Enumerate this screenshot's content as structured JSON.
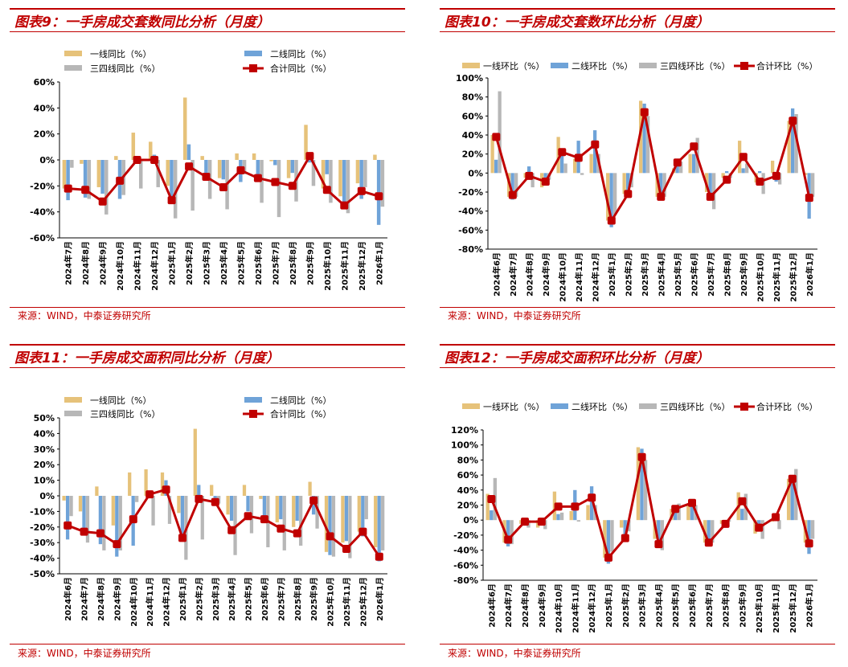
{
  "panels": [
    {
      "id": "p9",
      "title": "图表9：一手房成交套数同比分析（月度）",
      "source": "来源：WIND，中泰证券研究所"
    },
    {
      "id": "p10",
      "title": "图表10：一手房成交套数环比分析（月度）",
      "source": "来源：WIND，中泰证券研究所"
    },
    {
      "id": "p11",
      "title": "图表11：一手房成交面积同比分析（月度）",
      "source": "来源：WIND，中泰证券研究所"
    },
    {
      "id": "p12",
      "title": "图表12：一手房成交面积环比分析（月度）",
      "source": "来源：WIND，中泰证券研究所"
    }
  ],
  "colors": {
    "tier1": "#e6c27a",
    "tier2": "#6fa3d8",
    "tier34": "#b7b7b7",
    "total": "#c00000"
  },
  "chart_data": [
    {
      "id": "p9",
      "type": "bar+line",
      "title": "一手房成交套数同比分析（月度）",
      "categories": [
        "2024年7月",
        "2024年8月",
        "2024年9月",
        "2024年10月",
        "2024年11月",
        "2024年12月",
        "2025年1月",
        "2025年2月",
        "2025年3月",
        "2025年4月",
        "2025年5月",
        "2025年6月",
        "2025年7月",
        "2025年8月",
        "2025年9月",
        "2025年10月",
        "2025年11月",
        "2025年12月",
        "2026年1月"
      ],
      "yticks": [
        "60%",
        "40%",
        "20%",
        "0%",
        "-20%",
        "-40%",
        "-60%"
      ],
      "ylim": [
        -60,
        60
      ],
      "legend": [
        "一线同比（%）",
        "二线同比（%）",
        "三四线同比（%）",
        "合计同比（%）"
      ],
      "series": [
        {
          "name": "一线同比（%）",
          "values": [
            -22,
            -3,
            -21,
            3,
            21,
            14,
            -20,
            48,
            3,
            -14,
            5,
            5,
            -1,
            -14,
            27,
            -22,
            -28,
            -18,
            4
          ]
        },
        {
          "name": "二线同比（%）",
          "values": [
            -31,
            -29,
            -26,
            -30,
            0,
            4,
            -31,
            12,
            -12,
            -15,
            -17,
            -16,
            -4,
            -10,
            -2,
            -11,
            -34,
            -30,
            -50
          ]
        },
        {
          "name": "三四线同比（%）",
          "values": [
            -6,
            -30,
            -42,
            -27,
            -22,
            -21,
            -45,
            -39,
            -30,
            -38,
            -11,
            -33,
            -44,
            -32,
            -20,
            -33,
            -41,
            -21,
            -36
          ]
        },
        {
          "name": "合计同比（%）",
          "values": [
            -22,
            -23,
            -32,
            -16,
            0,
            0,
            -31,
            -5,
            -13,
            -21,
            -8,
            -14,
            -17,
            -20,
            3,
            -23,
            -35,
            -24,
            -28
          ]
        }
      ]
    },
    {
      "id": "p10",
      "type": "bar+line",
      "title": "一手房成交套数环比分析（月度）",
      "categories": [
        "2024年6月",
        "2024年7月",
        "2024年8月",
        "2024年9月",
        "2024年10月",
        "2024年11月",
        "2024年12月",
        "2025年1月",
        "2025年2月",
        "2025年3月",
        "2025年4月",
        "2025年5月",
        "2025年6月",
        "2025年7月",
        "2025年8月",
        "2025年9月",
        "2025年10月",
        "2025年11月",
        "2025年12月",
        "2026年1月"
      ],
      "yticks": [
        "100%",
        "80%",
        "60%",
        "40%",
        "20%",
        "0%",
        "-20%",
        "-40%",
        "-60%",
        "-80%"
      ],
      "ylim": [
        -80,
        100
      ],
      "legend": [
        "一线环比（%）",
        "二线环比（%）",
        "三四线环比（%）",
        "合计环比（%）"
      ],
      "series": [
        {
          "name": "一线环比（%）",
          "values": [
            40,
            -25,
            -5,
            -15,
            38,
            15,
            20,
            -50,
            -22,
            76,
            -25,
            5,
            20,
            -20,
            -5,
            34,
            -10,
            13,
            55,
            -2
          ]
        },
        {
          "name": "二线环比（%）",
          "values": [
            14,
            -28,
            7,
            -13,
            21,
            34,
            45,
            -57,
            -18,
            73,
            -22,
            10,
            20,
            -23,
            2,
            5,
            2,
            -9,
            68,
            -48
          ]
        },
        {
          "name": "三四线环比（%）",
          "values": [
            86,
            -25,
            -15,
            -7,
            10,
            -2,
            20,
            -44,
            -15,
            60,
            -25,
            12,
            37,
            -38,
            -5,
            10,
            -22,
            -12,
            62,
            -25
          ]
        },
        {
          "name": "合计环比（%）",
          "values": [
            38,
            -23,
            -3,
            -9,
            22,
            16,
            30,
            -50,
            -22,
            64,
            -25,
            11,
            28,
            -25,
            -7,
            17,
            -9,
            -3,
            55,
            -26
          ]
        }
      ]
    },
    {
      "id": "p11",
      "type": "bar+line",
      "title": "一手房成交面积同比分析（月度）",
      "categories": [
        "2024年6月",
        "2024年7月",
        "2024年8月",
        "2024年9月",
        "2024年10月",
        "2024年11月",
        "2024年12月",
        "2025年1月",
        "2025年2月",
        "2025年3月",
        "2025年4月",
        "2025年5月",
        "2025年6月",
        "2025年7月",
        "2025年8月",
        "2025年9月",
        "2025年10月",
        "2025年11月",
        "2025年12月",
        "2026年1月"
      ],
      "yticks": [
        "50%",
        "40%",
        "30%",
        "20%",
        "10%",
        "0%",
        "-10%",
        "-20%",
        "-30%",
        "-40%",
        "-50%"
      ],
      "ylim": [
        -50,
        50
      ],
      "legend": [
        "一线同比（%）",
        "二线同比（%）",
        "三四线同比（%）",
        "合计同比（%）"
      ],
      "series": [
        {
          "name": "一线同比（%）",
          "values": [
            -3,
            -10,
            6,
            -19,
            15,
            17,
            15,
            -11,
            43,
            7,
            -12,
            7,
            -2,
            -17,
            -20,
            9,
            -36,
            -30,
            -23,
            -33
          ]
        },
        {
          "name": "二线同比（%）",
          "values": [
            -28,
            -24,
            -31,
            -39,
            -32,
            3,
            10,
            -27,
            7,
            -4,
            -16,
            -10,
            -13,
            -15,
            -16,
            -12,
            -38,
            -29,
            -26,
            -42
          ]
        },
        {
          "name": "三四线同比（%）",
          "values": [
            -13,
            -30,
            -35,
            -35,
            -4,
            -19,
            -18,
            -41,
            -28,
            -5,
            -38,
            -24,
            -33,
            -35,
            -32,
            -21,
            -39,
            -40,
            -15,
            -35
          ]
        },
        {
          "name": "合计同比（%）",
          "values": [
            -19,
            -23,
            -24,
            -31,
            -15,
            1,
            4,
            -27,
            -2,
            -4,
            -22,
            -13,
            -15,
            -21,
            -24,
            -3,
            -26,
            -34,
            -23,
            -39
          ]
        }
      ]
    },
    {
      "id": "p12",
      "type": "bar+line",
      "title": "一手房成交面积环比分析（月度）",
      "categories": [
        "2024年6月",
        "2024年7月",
        "2024年8月",
        "2024年9月",
        "2024年10月",
        "2024年11月",
        "2024年12月",
        "2025年1月",
        "2025年2月",
        "2025年3月",
        "2025年4月",
        "2025年5月",
        "2025年6月",
        "2025年7月",
        "2025年8月",
        "2025年9月",
        "2025年10月",
        "2025年11月",
        "2025年12月",
        "2026年1月"
      ],
      "yticks": [
        "120%",
        "100%",
        "80%",
        "60%",
        "40%",
        "20%",
        "0%",
        "-20%",
        "-40%",
        "-60%",
        "-80%"
      ],
      "ylim": [
        -80,
        120
      ],
      "legend": [
        "一线环比（%）",
        "二线环比（%）",
        "三四线环比（%）",
        "合计环比（%）"
      ],
      "series": [
        {
          "name": "一线环比（%）",
          "values": [
            35,
            -30,
            -5,
            -10,
            38,
            12,
            20,
            -50,
            -10,
            97,
            -25,
            15,
            20,
            -30,
            -5,
            37,
            -18,
            -2,
            55,
            -30
          ]
        },
        {
          "name": "二线环比（%）",
          "values": [
            13,
            -35,
            -2,
            -2,
            8,
            40,
            45,
            -58,
            -28,
            95,
            -30,
            20,
            22,
            -35,
            -5,
            15,
            -15,
            0,
            50,
            -45
          ]
        },
        {
          "name": "三四线环比（%）",
          "values": [
            56,
            -32,
            -10,
            -12,
            10,
            -2,
            20,
            -42,
            -15,
            80,
            -40,
            22,
            20,
            -30,
            -2,
            35,
            -25,
            -12,
            68,
            -25
          ]
        },
        {
          "name": "合计环比（%）",
          "values": [
            28,
            -26,
            -2,
            -2,
            18,
            18,
            30,
            -50,
            -24,
            84,
            -32,
            15,
            23,
            -30,
            -5,
            25,
            -10,
            4,
            55,
            -31
          ]
        }
      ]
    }
  ]
}
